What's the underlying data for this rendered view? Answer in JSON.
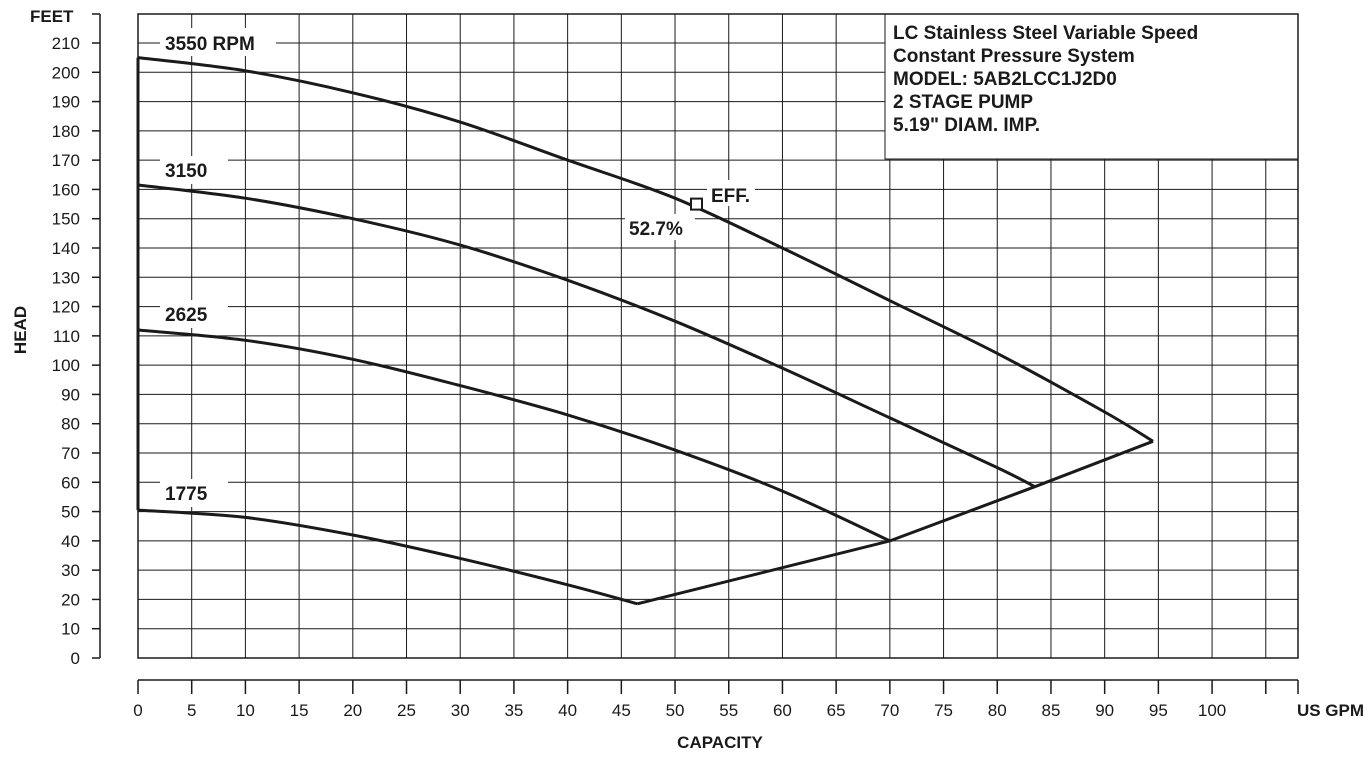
{
  "chart_data": {
    "type": "line",
    "title_lines": [
      "LC Stainless Steel Variable Speed",
      "Constant Pressure System",
      "MODEL: 5AB2LCC1J2D0",
      "2 STAGE PUMP",
      "5.19\" DIAM. IMP."
    ],
    "xlabel": "CAPACITY",
    "x_unit": "US GPM",
    "ylabel": "HEAD",
    "y_unit": "FEET",
    "xlim": [
      0,
      108
    ],
    "ylim": [
      0,
      210
    ],
    "x_ticks": [
      "0",
      "5",
      "10",
      "15",
      "20",
      "25",
      "30",
      "35",
      "40",
      "45",
      "50",
      "55",
      "60",
      "65",
      "70",
      "75",
      "80",
      "85",
      "90",
      "95",
      "100"
    ],
    "y_ticks": [
      "0",
      "10",
      "20",
      "30",
      "40",
      "50",
      "60",
      "70",
      "80",
      "90",
      "100",
      "110",
      "120",
      "130",
      "140",
      "150",
      "160",
      "170",
      "180",
      "190",
      "200",
      "210"
    ],
    "grid": true,
    "series": [
      {
        "name": "3550 RPM",
        "x": [
          0,
          10,
          20,
          30,
          40,
          50,
          60,
          70,
          80,
          90,
          94.5
        ],
        "y": [
          205,
          200.5,
          193,
          183,
          170,
          157,
          140,
          122,
          104,
          84,
          74
        ]
      },
      {
        "name": "3150",
        "x": [
          0,
          10,
          20,
          30,
          40,
          50,
          60,
          70,
          80,
          83.5
        ],
        "y": [
          161.5,
          157,
          150,
          141,
          129,
          115,
          99,
          82,
          65,
          58.5
        ]
      },
      {
        "name": "2625",
        "x": [
          0,
          10,
          20,
          30,
          40,
          50,
          60,
          70
        ],
        "y": [
          112,
          108.5,
          102,
          93,
          83,
          71,
          57,
          40
        ]
      },
      {
        "name": "1775",
        "x": [
          0,
          10,
          20,
          30,
          40,
          46.5
        ],
        "y": [
          50.5,
          48,
          42,
          34,
          25,
          18.5
        ]
      }
    ],
    "end_of_curve": {
      "x": [
        46.5,
        70,
        83.5,
        94.5
      ],
      "y": [
        18.5,
        40,
        58.5,
        74
      ]
    },
    "shutoff_line": {
      "x": [
        0,
        0
      ],
      "y": [
        50.5,
        205
      ]
    },
    "annotation": {
      "label": "EFF.",
      "value_label": "52.7%",
      "x": 52,
      "y": 155
    }
  }
}
